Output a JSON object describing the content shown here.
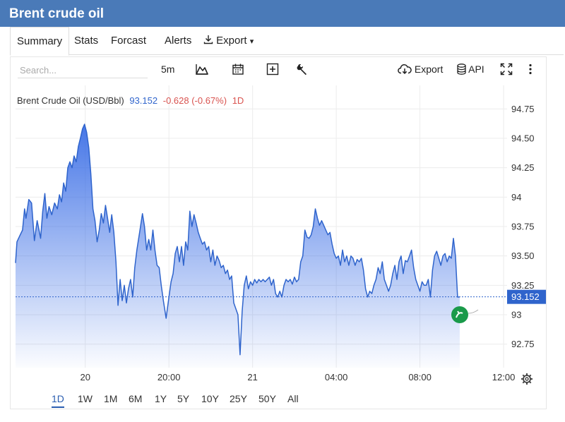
{
  "page_title": "Brent crude oil",
  "tabs": [
    {
      "label": "Summary",
      "active": true
    },
    {
      "label": "Stats"
    },
    {
      "label": "Forcast"
    },
    {
      "label": "Alerts"
    },
    {
      "label": "Export",
      "icon": "download-icon",
      "caret": "▾"
    }
  ],
  "toolbar": {
    "search_placeholder": "Search...",
    "interval": "5m",
    "export_label": "Export",
    "api_label": "API"
  },
  "legend": {
    "name": "Brent Crude Oil (USD/Bbl)",
    "price": "93.152",
    "change": "-0.628 (-0.67%)",
    "period": "1D"
  },
  "colors": {
    "header_bg": "#4a7ab8",
    "line": "#2f64cc",
    "fill_top": "#3c6fe6",
    "price_tag": "#2f64cc",
    "negative": "#d9534f",
    "active_range": "#2a5db0"
  },
  "range_buttons": [
    "1D",
    "1W",
    "1M",
    "6M",
    "1Y",
    "5Y",
    "10Y",
    "25Y",
    "50Y",
    "All"
  ],
  "active_range": "1D",
  "chart_data": {
    "type": "area",
    "title": "",
    "ylim": [
      92.55,
      94.95
    ],
    "yticks": [
      92.75,
      93,
      93.25,
      93.5,
      93.75,
      94,
      94.25,
      94.5,
      94.75
    ],
    "ytick_labels": [
      "92.75",
      "93",
      "93.25",
      "93.50",
      "93.75",
      "94",
      "94.25",
      "94.50",
      "94.75"
    ],
    "xticks": [
      {
        "label": "20",
        "x": 29
      },
      {
        "label": "20:00",
        "x": 41
      },
      {
        "label": "21",
        "x": 53
      },
      {
        "label": "04:00",
        "x": 65
      },
      {
        "label": "08:00",
        "x": 77
      },
      {
        "label": "12:00",
        "x": 89
      }
    ],
    "grid": true,
    "last_price": 93.152,
    "last_price_label": "93.152",
    "series": [
      {
        "values": [
          [
            19,
            93.44
          ],
          [
            19.2,
            93.62
          ],
          [
            19.6,
            93.67
          ],
          [
            20.0,
            93.72
          ],
          [
            20.3,
            93.9
          ],
          [
            20.5,
            93.82
          ],
          [
            20.9,
            93.98
          ],
          [
            21.3,
            93.95
          ],
          [
            21.7,
            93.63
          ],
          [
            22.1,
            93.8
          ],
          [
            22.6,
            93.65
          ],
          [
            22.9,
            93.88
          ],
          [
            23.2,
            94.03
          ],
          [
            23.5,
            93.82
          ],
          [
            23.8,
            93.92
          ],
          [
            24.2,
            93.85
          ],
          [
            24.6,
            93.95
          ],
          [
            25.0,
            93.9
          ],
          [
            25.3,
            94.02
          ],
          [
            25.6,
            93.96
          ],
          [
            25.9,
            94.12
          ],
          [
            26.2,
            94.05
          ],
          [
            26.5,
            94.25
          ],
          [
            26.8,
            94.3
          ],
          [
            27.1,
            94.25
          ],
          [
            27.4,
            94.35
          ],
          [
            27.7,
            94.3
          ],
          [
            28.0,
            94.43
          ],
          [
            28.3,
            94.5
          ],
          [
            28.6,
            94.58
          ],
          [
            28.9,
            94.62
          ],
          [
            29.2,
            94.55
          ],
          [
            29.5,
            94.42
          ],
          [
            29.8,
            94.2
          ],
          [
            30.1,
            93.9
          ],
          [
            30.4,
            93.8
          ],
          [
            30.7,
            93.62
          ],
          [
            31.0,
            93.72
          ],
          [
            31.3,
            93.86
          ],
          [
            31.6,
            93.78
          ],
          [
            31.9,
            93.93
          ],
          [
            32.2,
            93.82
          ],
          [
            32.5,
            93.7
          ],
          [
            32.8,
            93.85
          ],
          [
            33.1,
            93.7
          ],
          [
            33.4,
            93.45
          ],
          [
            33.7,
            93.08
          ],
          [
            34.0,
            93.3
          ],
          [
            34.3,
            93.12
          ],
          [
            34.6,
            93.25
          ],
          [
            34.9,
            93.1
          ],
          [
            35.2,
            93.22
          ],
          [
            35.5,
            93.3
          ],
          [
            35.8,
            93.15
          ],
          [
            36.1,
            93.4
          ],
          [
            36.4,
            93.55
          ],
          [
            36.8,
            93.7
          ],
          [
            37.2,
            93.86
          ],
          [
            37.5,
            93.75
          ],
          [
            37.8,
            93.55
          ],
          [
            38.1,
            93.64
          ],
          [
            38.4,
            93.55
          ],
          [
            38.7,
            93.72
          ],
          [
            39.0,
            93.55
          ],
          [
            39.3,
            93.42
          ],
          [
            39.6,
            93.4
          ],
          [
            39.9,
            93.25
          ],
          [
            40.2,
            93.12
          ],
          [
            40.6,
            92.97
          ],
          [
            41.0,
            93.15
          ],
          [
            41.3,
            93.28
          ],
          [
            41.6,
            93.35
          ],
          [
            41.9,
            93.52
          ],
          [
            42.2,
            93.58
          ],
          [
            42.5,
            93.45
          ],
          [
            42.8,
            93.58
          ],
          [
            43.1,
            93.42
          ],
          [
            43.4,
            93.62
          ],
          [
            43.7,
            93.55
          ],
          [
            44.0,
            93.88
          ],
          [
            44.3,
            93.75
          ],
          [
            44.6,
            93.85
          ],
          [
            44.9,
            93.78
          ],
          [
            45.2,
            93.7
          ],
          [
            45.5,
            93.65
          ],
          [
            45.8,
            93.6
          ],
          [
            46.1,
            93.62
          ],
          [
            46.4,
            93.55
          ],
          [
            46.7,
            93.58
          ],
          [
            47.0,
            93.45
          ],
          [
            47.3,
            93.55
          ],
          [
            47.6,
            93.42
          ],
          [
            47.9,
            93.5
          ],
          [
            48.2,
            93.46
          ],
          [
            48.5,
            93.4
          ],
          [
            48.8,
            93.42
          ],
          [
            49.1,
            93.35
          ],
          [
            49.4,
            93.38
          ],
          [
            49.7,
            93.3
          ],
          [
            50.0,
            93.33
          ],
          [
            50.3,
            93.1
          ],
          [
            50.6,
            93.05
          ],
          [
            50.9,
            93.0
          ],
          [
            51.2,
            92.66
          ],
          [
            51.5,
            93.03
          ],
          [
            51.8,
            93.25
          ],
          [
            52.1,
            93.33
          ],
          [
            52.4,
            93.22
          ],
          [
            52.7,
            93.28
          ],
          [
            53.0,
            93.25
          ],
          [
            53.3,
            93.3
          ],
          [
            53.6,
            93.27
          ],
          [
            53.9,
            93.3
          ],
          [
            54.2,
            93.28
          ],
          [
            54.5,
            93.3
          ],
          [
            54.8,
            93.28
          ],
          [
            55.1,
            93.3
          ],
          [
            55.4,
            93.32
          ],
          [
            55.7,
            93.25
          ],
          [
            56.0,
            93.3
          ],
          [
            56.3,
            93.18
          ],
          [
            56.6,
            93.15
          ],
          [
            56.9,
            93.2
          ],
          [
            57.2,
            93.15
          ],
          [
            57.5,
            93.25
          ],
          [
            57.8,
            93.3
          ],
          [
            58.1,
            93.28
          ],
          [
            58.4,
            93.3
          ],
          [
            58.7,
            93.26
          ],
          [
            59.0,
            93.32
          ],
          [
            59.3,
            93.28
          ],
          [
            59.6,
            93.3
          ],
          [
            59.9,
            93.45
          ],
          [
            60.2,
            93.5
          ],
          [
            60.5,
            93.72
          ],
          [
            60.8,
            93.66
          ],
          [
            61.1,
            93.65
          ],
          [
            61.4,
            93.68
          ],
          [
            61.7,
            93.75
          ],
          [
            62.0,
            93.9
          ],
          [
            62.3,
            93.82
          ],
          [
            62.6,
            93.76
          ],
          [
            62.9,
            93.8
          ],
          [
            63.2,
            93.76
          ],
          [
            63.5,
            93.72
          ],
          [
            63.8,
            93.68
          ],
          [
            64.1,
            93.7
          ],
          [
            64.4,
            93.6
          ],
          [
            64.7,
            93.52
          ],
          [
            65.0,
            93.48
          ],
          [
            65.3,
            93.5
          ],
          [
            65.6,
            93.42
          ],
          [
            65.9,
            93.55
          ],
          [
            66.2,
            93.45
          ],
          [
            66.5,
            93.5
          ],
          [
            66.8,
            93.42
          ],
          [
            67.1,
            93.5
          ],
          [
            67.4,
            93.48
          ],
          [
            67.7,
            93.42
          ],
          [
            68.0,
            93.47
          ],
          [
            68.3,
            93.45
          ],
          [
            68.6,
            93.48
          ],
          [
            68.9,
            93.38
          ],
          [
            69.2,
            93.22
          ],
          [
            69.5,
            93.15
          ],
          [
            69.8,
            93.2
          ],
          [
            70.1,
            93.18
          ],
          [
            70.4,
            93.25
          ],
          [
            70.7,
            93.3
          ],
          [
            71.0,
            93.4
          ],
          [
            71.3,
            93.35
          ],
          [
            71.6,
            93.45
          ],
          [
            71.9,
            93.3
          ],
          [
            72.2,
            93.25
          ],
          [
            72.5,
            93.2
          ],
          [
            72.8,
            93.25
          ],
          [
            73.1,
            93.35
          ],
          [
            73.4,
            93.42
          ],
          [
            73.7,
            93.3
          ],
          [
            74.0,
            93.45
          ],
          [
            74.3,
            93.5
          ],
          [
            74.6,
            93.35
          ],
          [
            74.9,
            93.46
          ],
          [
            75.2,
            93.45
          ],
          [
            75.5,
            93.5
          ],
          [
            75.8,
            93.55
          ],
          [
            76.1,
            93.4
          ],
          [
            76.4,
            93.3
          ],
          [
            76.7,
            93.25
          ],
          [
            77.0,
            93.2
          ],
          [
            77.3,
            93.28
          ],
          [
            77.6,
            93.25
          ],
          [
            77.9,
            93.25
          ],
          [
            78.2,
            93.3
          ],
          [
            78.5,
            93.15
          ],
          [
            78.8,
            93.38
          ],
          [
            79.1,
            93.5
          ],
          [
            79.4,
            93.54
          ],
          [
            79.7,
            93.48
          ],
          [
            80.0,
            93.42
          ],
          [
            80.3,
            93.5
          ],
          [
            80.6,
            93.52
          ],
          [
            80.9,
            93.45
          ],
          [
            81.2,
            93.5
          ],
          [
            81.5,
            93.48
          ],
          [
            81.8,
            93.65
          ],
          [
            82.1,
            93.5
          ],
          [
            82.4,
            93.15
          ],
          [
            82.7,
            93.152
          ]
        ]
      }
    ]
  }
}
